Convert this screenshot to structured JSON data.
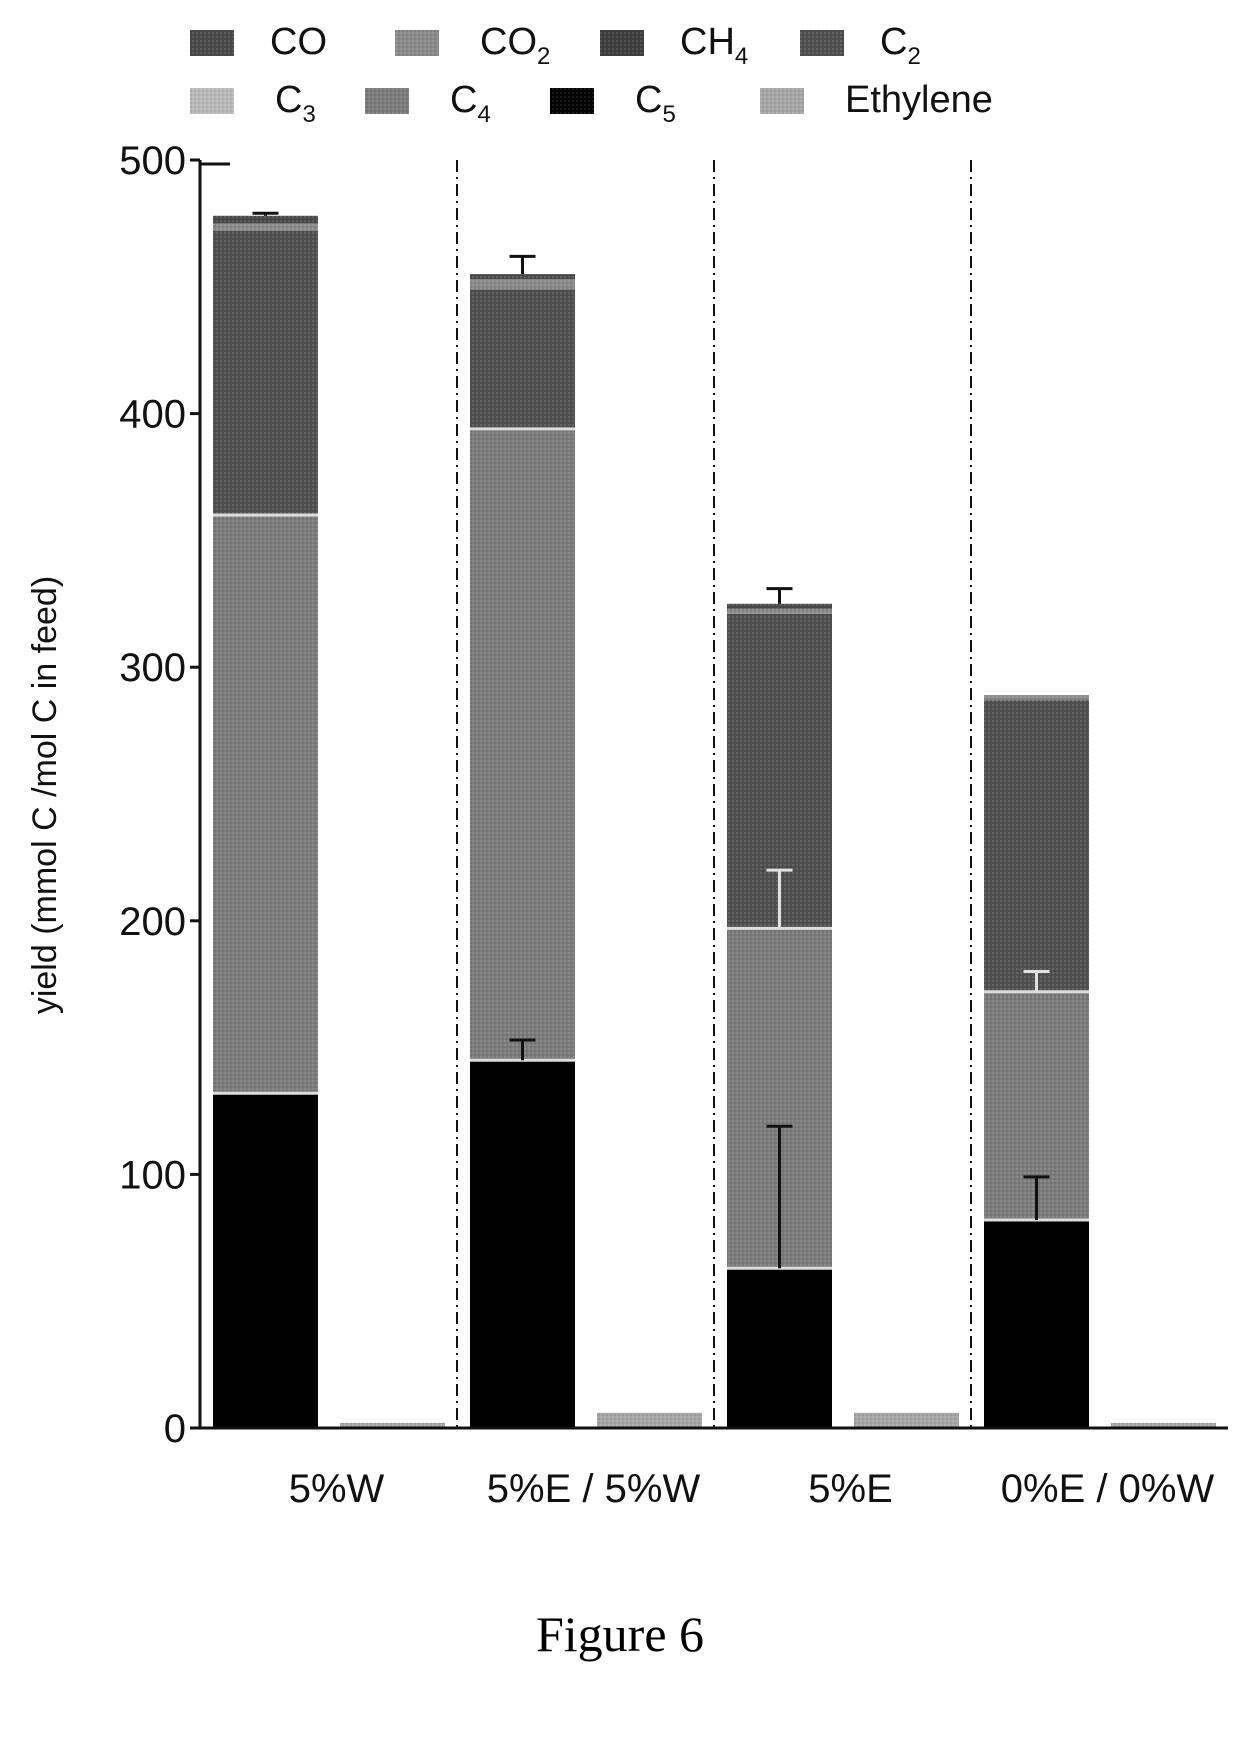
{
  "chart_data": {
    "type": "bar",
    "stacked": true,
    "ylabel": "yield (mmol C /mol C in feed)",
    "ylim": [
      0,
      500
    ],
    "yticks": [
      0,
      100,
      200,
      300,
      400,
      500
    ],
    "categories": [
      "5%W",
      "5%E / 5%W",
      "5%E",
      "0%E / 0%W"
    ],
    "legend": {
      "placement": "top",
      "entries": [
        {
          "key": "CO",
          "label": "CO",
          "base": "CO",
          "sub": ""
        },
        {
          "key": "CO2",
          "label": "CO2",
          "base": "CO",
          "sub": "2"
        },
        {
          "key": "CH4",
          "label": "CH4",
          "base": "CH",
          "sub": "4"
        },
        {
          "key": "C2",
          "label": "C2",
          "base": "C",
          "sub": "2"
        },
        {
          "key": "C3",
          "label": "C3",
          "base": "C",
          "sub": "3"
        },
        {
          "key": "C4",
          "label": "C4",
          "base": "C",
          "sub": "4"
        },
        {
          "key": "C5",
          "label": "C5",
          "base": "C",
          "sub": "5"
        },
        {
          "key": "Ethylene",
          "label": "Ethylene",
          "base": "Ethylene",
          "sub": ""
        }
      ]
    },
    "colors": {
      "CO": "#4a4a4a",
      "CO2": "#8a8a8a",
      "CH4": "#3e3e3e",
      "C2": "#505050",
      "C3": "#b8b8b8",
      "C4": "#7c7c7c",
      "C5": "#000000",
      "Ethylene": "#a6a6a6"
    },
    "groups": [
      {
        "category": "5%W",
        "product_bar": {
          "segments": [
            {
              "key": "C5",
              "value": 132
            },
            {
              "key": "C4",
              "value": 228
            },
            {
              "key": "C2",
              "value": 112
            },
            {
              "key": "CO2",
              "value": 3
            },
            {
              "key": "CO",
              "value": 3
            }
          ],
          "error_bars": [
            {
              "at": 478,
              "plus": 1
            }
          ]
        },
        "ethylene_bar": {
          "value": 2
        }
      },
      {
        "category": "5%E / 5%W",
        "product_bar": {
          "segments": [
            {
              "key": "C5",
              "value": 145
            },
            {
              "key": "C4",
              "value": 249
            },
            {
              "key": "C2",
              "value": 55
            },
            {
              "key": "CO2",
              "value": 4
            },
            {
              "key": "CO",
              "value": 2
            }
          ],
          "error_bars": [
            {
              "at": 145,
              "plus": 8
            },
            {
              "at": 455,
              "plus": 7
            }
          ]
        },
        "ethylene_bar": {
          "value": 6
        }
      },
      {
        "category": "5%E",
        "product_bar": {
          "segments": [
            {
              "key": "C5",
              "value": 63
            },
            {
              "key": "C4",
              "value": 134
            },
            {
              "key": "C2",
              "value": 124
            },
            {
              "key": "CO2",
              "value": 2
            },
            {
              "key": "CO",
              "value": 2
            }
          ],
          "error_bars": [
            {
              "at": 63,
              "plus": 56
            },
            {
              "at": 197,
              "plus": 23
            },
            {
              "at": 325,
              "plus": 6
            }
          ]
        },
        "ethylene_bar": {
          "value": 6
        }
      },
      {
        "category": "0%E / 0%W",
        "product_bar": {
          "segments": [
            {
              "key": "C5",
              "value": 82
            },
            {
              "key": "C4",
              "value": 90
            },
            {
              "key": "C2",
              "value": 115
            },
            {
              "key": "CO2",
              "value": 2
            }
          ],
          "error_bars": [
            {
              "at": 82,
              "plus": 17
            },
            {
              "at": 172,
              "plus": 8
            }
          ]
        },
        "ethylene_bar": {
          "value": 2
        }
      }
    ]
  },
  "caption": "Figure 6"
}
